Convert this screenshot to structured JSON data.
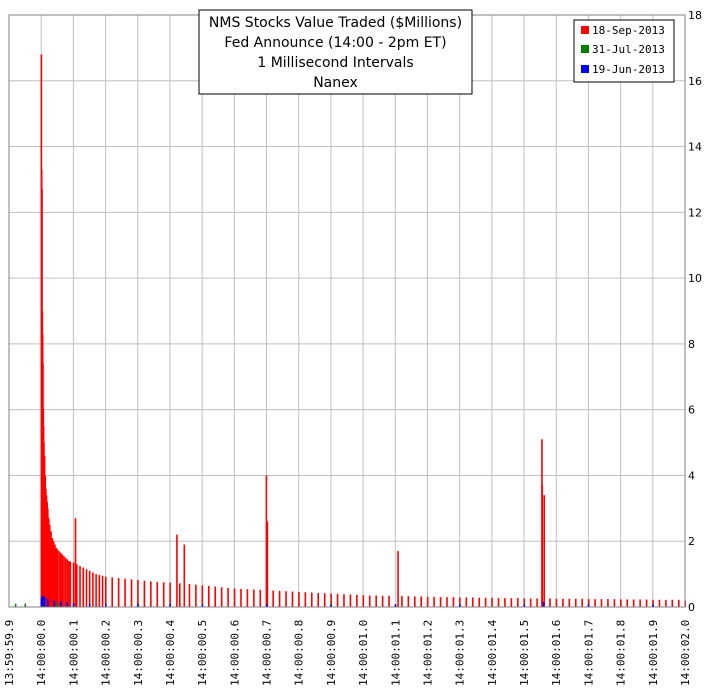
{
  "chart_data": {
    "type": "bar",
    "title_lines": [
      "NMS Stocks Value Traded ($Millions)",
      "Fed Announce (14:00 - 2pm ET)",
      "1 Millisecond Intervals",
      "Nanex"
    ],
    "xlabel": "",
    "ylabel": "",
    "ylim": [
      0,
      18
    ],
    "y_ticks": [
      "0",
      "2",
      "4",
      "6",
      "8",
      "10",
      "12",
      "14",
      "16",
      "18"
    ],
    "y_axis_side": "right",
    "x_range_seconds": [
      -0.1,
      2.0
    ],
    "x_ticks": [
      {
        "t": -0.1,
        "label": "13:59:59.9"
      },
      {
        "t": 0.0,
        "label": "14:00:00.0"
      },
      {
        "t": 0.1,
        "label": "14:00:00.1"
      },
      {
        "t": 0.2,
        "label": "14:00:00.2"
      },
      {
        "t": 0.3,
        "label": "14:00:00.3"
      },
      {
        "t": 0.4,
        "label": "14:00:00.4"
      },
      {
        "t": 0.5,
        "label": "14:00:00.5"
      },
      {
        "t": 0.6,
        "label": "14:00:00.6"
      },
      {
        "t": 0.7,
        "label": "14:00:00.7"
      },
      {
        "t": 0.8,
        "label": "14:00:00.8"
      },
      {
        "t": 0.9,
        "label": "14:00:00.9"
      },
      {
        "t": 1.0,
        "label": "14:00:01.0"
      },
      {
        "t": 1.1,
        "label": "14:00:01.1"
      },
      {
        "t": 1.2,
        "label": "14:00:01.2"
      },
      {
        "t": 1.3,
        "label": "14:00:01.3"
      },
      {
        "t": 1.4,
        "label": "14:00:01.4"
      },
      {
        "t": 1.5,
        "label": "14:00:01.5"
      },
      {
        "t": 1.6,
        "label": "14:00:01.6"
      },
      {
        "t": 1.7,
        "label": "14:00:01.7"
      },
      {
        "t": 1.8,
        "label": "14:00:01.8"
      },
      {
        "t": 1.9,
        "label": "14:00:01.9"
      },
      {
        "t": 2.0,
        "label": "14:00:02.0"
      }
    ],
    "grid": true,
    "legend_position": "top-right",
    "series": [
      {
        "name": "18-Sep-2013",
        "color": "#ff0000",
        "points": [
          [
            0.0,
            16.8
          ],
          [
            0.001,
            13.3
          ],
          [
            0.002,
            12.7
          ],
          [
            0.003,
            9.0
          ],
          [
            0.004,
            8.3
          ],
          [
            0.005,
            7.4
          ],
          [
            0.006,
            6.0
          ],
          [
            0.007,
            5.5
          ],
          [
            0.008,
            5.0
          ],
          [
            0.01,
            4.6
          ],
          [
            0.012,
            4.0
          ],
          [
            0.014,
            3.6
          ],
          [
            0.016,
            3.4
          ],
          [
            0.018,
            3.2
          ],
          [
            0.02,
            3.0
          ],
          [
            0.023,
            2.7
          ],
          [
            0.026,
            2.5
          ],
          [
            0.03,
            2.3
          ],
          [
            0.034,
            2.1
          ],
          [
            0.038,
            2.0
          ],
          [
            0.042,
            1.9
          ],
          [
            0.046,
            1.8
          ],
          [
            0.05,
            1.75
          ],
          [
            0.055,
            1.7
          ],
          [
            0.06,
            1.65
          ],
          [
            0.065,
            1.6
          ],
          [
            0.07,
            1.55
          ],
          [
            0.075,
            1.5
          ],
          [
            0.08,
            1.45
          ],
          [
            0.085,
            1.4
          ],
          [
            0.09,
            1.38
          ],
          [
            0.1,
            1.35
          ],
          [
            0.106,
            2.7
          ],
          [
            0.11,
            1.3
          ],
          [
            0.12,
            1.25
          ],
          [
            0.13,
            1.2
          ],
          [
            0.14,
            1.15
          ],
          [
            0.15,
            1.1
          ],
          [
            0.16,
            1.05
          ],
          [
            0.17,
            1.0
          ],
          [
            0.18,
            0.98
          ],
          [
            0.19,
            0.95
          ],
          [
            0.2,
            0.92
          ],
          [
            0.22,
            0.9
          ],
          [
            0.24,
            0.88
          ],
          [
            0.26,
            0.86
          ],
          [
            0.28,
            0.84
          ],
          [
            0.3,
            0.82
          ],
          [
            0.32,
            0.8
          ],
          [
            0.34,
            0.78
          ],
          [
            0.36,
            0.76
          ],
          [
            0.38,
            0.75
          ],
          [
            0.4,
            0.74
          ],
          [
            0.421,
            2.2
          ],
          [
            0.43,
            0.72
          ],
          [
            0.444,
            1.9
          ],
          [
            0.46,
            0.7
          ],
          [
            0.48,
            0.68
          ],
          [
            0.5,
            0.66
          ],
          [
            0.52,
            0.64
          ],
          [
            0.54,
            0.62
          ],
          [
            0.56,
            0.6
          ],
          [
            0.58,
            0.58
          ],
          [
            0.6,
            0.56
          ],
          [
            0.62,
            0.55
          ],
          [
            0.64,
            0.54
          ],
          [
            0.66,
            0.53
          ],
          [
            0.68,
            0.52
          ],
          [
            0.699,
            4.0
          ],
          [
            0.702,
            2.6
          ],
          [
            0.72,
            0.5
          ],
          [
            0.74,
            0.49
          ],
          [
            0.76,
            0.48
          ],
          [
            0.78,
            0.47
          ],
          [
            0.8,
            0.46
          ],
          [
            0.82,
            0.45
          ],
          [
            0.84,
            0.44
          ],
          [
            0.86,
            0.43
          ],
          [
            0.88,
            0.42
          ],
          [
            0.9,
            0.41
          ],
          [
            0.92,
            0.4
          ],
          [
            0.94,
            0.39
          ],
          [
            0.96,
            0.38
          ],
          [
            0.98,
            0.37
          ],
          [
            1.0,
            0.36
          ],
          [
            1.02,
            0.35
          ],
          [
            1.04,
            0.35
          ],
          [
            1.06,
            0.34
          ],
          [
            1.08,
            0.34
          ],
          [
            1.108,
            1.7
          ],
          [
            1.12,
            0.33
          ],
          [
            1.14,
            0.33
          ],
          [
            1.16,
            0.32
          ],
          [
            1.18,
            0.32
          ],
          [
            1.2,
            0.31
          ],
          [
            1.22,
            0.31
          ],
          [
            1.24,
            0.3
          ],
          [
            1.26,
            0.3
          ],
          [
            1.28,
            0.3
          ],
          [
            1.3,
            0.29
          ],
          [
            1.32,
            0.29
          ],
          [
            1.34,
            0.29
          ],
          [
            1.36,
            0.28
          ],
          [
            1.38,
            0.28
          ],
          [
            1.4,
            0.28
          ],
          [
            1.42,
            0.27
          ],
          [
            1.44,
            0.27
          ],
          [
            1.46,
            0.27
          ],
          [
            1.48,
            0.27
          ],
          [
            1.5,
            0.26
          ],
          [
            1.52,
            0.26
          ],
          [
            1.54,
            0.26
          ],
          [
            1.555,
            5.1
          ],
          [
            1.556,
            3.7
          ],
          [
            1.562,
            3.4
          ],
          [
            1.58,
            0.26
          ],
          [
            1.6,
            0.25
          ],
          [
            1.62,
            0.25
          ],
          [
            1.64,
            0.25
          ],
          [
            1.66,
            0.25
          ],
          [
            1.68,
            0.25
          ],
          [
            1.7,
            0.24
          ],
          [
            1.72,
            0.24
          ],
          [
            1.74,
            0.24
          ],
          [
            1.76,
            0.24
          ],
          [
            1.78,
            0.24
          ],
          [
            1.8,
            0.23
          ],
          [
            1.82,
            0.23
          ],
          [
            1.84,
            0.23
          ],
          [
            1.86,
            0.23
          ],
          [
            1.88,
            0.23
          ],
          [
            1.9,
            0.22
          ],
          [
            1.92,
            0.22
          ],
          [
            1.94,
            0.22
          ],
          [
            1.96,
            0.22
          ],
          [
            1.98,
            0.22
          ],
          [
            2.0,
            0.2
          ]
        ]
      },
      {
        "name": "31-Jul-2013",
        "color": "#008000",
        "points": [
          [
            -0.08,
            0.1
          ],
          [
            -0.05,
            0.1
          ],
          [
            0.0,
            0.2
          ],
          [
            0.01,
            0.15
          ],
          [
            0.05,
            0.12
          ],
          [
            0.1,
            0.1
          ],
          [
            0.3,
            0.08
          ],
          [
            0.5,
            0.08
          ],
          [
            0.7,
            0.08
          ],
          [
            0.9,
            0.08
          ],
          [
            1.1,
            0.08
          ],
          [
            1.3,
            0.08
          ],
          [
            1.5,
            0.08
          ],
          [
            1.7,
            0.08
          ],
          [
            1.9,
            0.08
          ]
        ]
      },
      {
        "name": "19-Jun-2013",
        "color": "#0000ff",
        "points": [
          [
            0.0,
            0.3
          ],
          [
            0.005,
            0.35
          ],
          [
            0.01,
            0.3
          ],
          [
            0.02,
            0.25
          ],
          [
            0.04,
            0.2
          ],
          [
            0.06,
            0.18
          ],
          [
            0.08,
            0.15
          ],
          [
            0.1,
            0.12
          ],
          [
            0.15,
            0.1
          ],
          [
            0.2,
            0.1
          ],
          [
            0.3,
            0.09
          ],
          [
            0.4,
            0.09
          ],
          [
            0.5,
            0.08
          ],
          [
            0.7,
            0.08
          ],
          [
            0.9,
            0.08
          ],
          [
            1.1,
            0.08
          ],
          [
            1.3,
            0.08
          ],
          [
            1.5,
            0.08
          ],
          [
            1.56,
            0.15
          ],
          [
            1.7,
            0.08
          ],
          [
            1.9,
            0.08
          ]
        ]
      }
    ]
  }
}
